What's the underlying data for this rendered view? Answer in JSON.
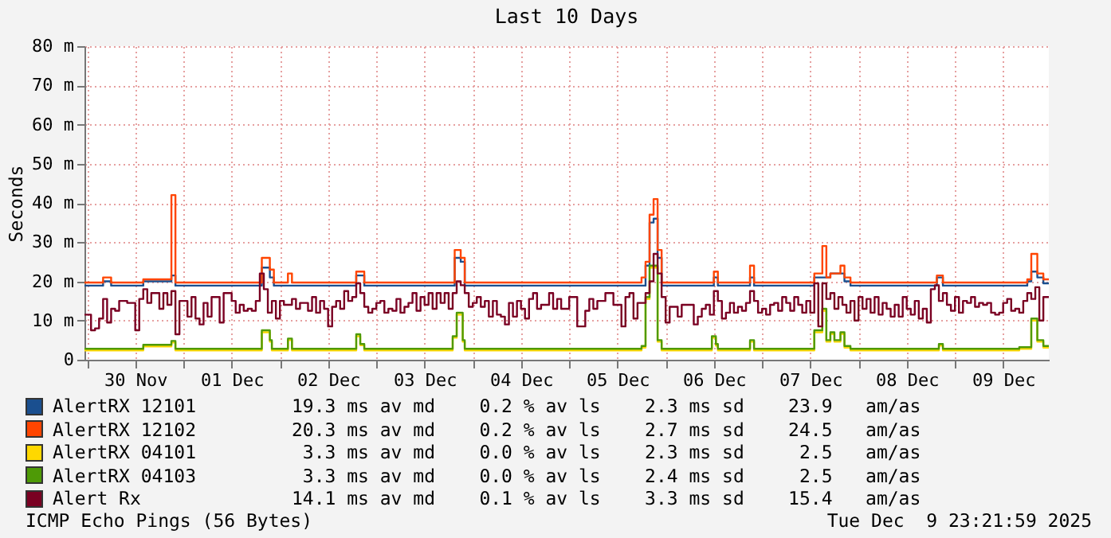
{
  "chart_data": {
    "type": "step",
    "title": "Last 10 Days",
    "ylabel": "Seconds",
    "xlim": [
      "2025-11-29T23:22",
      "2025-12-09T23:22"
    ],
    "xticks": [
      {
        "value": "2025-11-30T00:00",
        "label": null
      },
      {
        "value": "2025-11-30T12:00",
        "label": "30 Nov"
      },
      {
        "value": "2025-12-01T00:00",
        "label": null
      },
      {
        "value": "2025-12-01T12:00",
        "label": "01 Dec"
      },
      {
        "value": "2025-12-02T00:00",
        "label": null
      },
      {
        "value": "2025-12-02T12:00",
        "label": "02 Dec"
      },
      {
        "value": "2025-12-03T00:00",
        "label": null
      },
      {
        "value": "2025-12-03T12:00",
        "label": "03 Dec"
      },
      {
        "value": "2025-12-04T00:00",
        "label": null
      },
      {
        "value": "2025-12-04T12:00",
        "label": "04 Dec"
      },
      {
        "value": "2025-12-05T00:00",
        "label": null
      },
      {
        "value": "2025-12-05T12:00",
        "label": "05 Dec"
      },
      {
        "value": "2025-12-06T00:00",
        "label": null
      },
      {
        "value": "2025-12-06T12:00",
        "label": "06 Dec"
      },
      {
        "value": "2025-12-07T00:00",
        "label": null
      },
      {
        "value": "2025-12-07T12:00",
        "label": "07 Dec"
      },
      {
        "value": "2025-12-08T00:00",
        "label": null
      },
      {
        "value": "2025-12-08T12:00",
        "label": "08 Dec"
      },
      {
        "value": "2025-12-09T00:00",
        "label": null
      },
      {
        "value": "2025-12-09T12:00",
        "label": "09 Dec"
      }
    ],
    "ylim": [
      0,
      80
    ],
    "yticks": [
      0,
      {
        "value": 10,
        "label": "10 m"
      },
      {
        "value": 20,
        "label": "20 m"
      },
      {
        "value": 30,
        "label": "30 m"
      },
      {
        "value": 40,
        "label": "40 m"
      },
      {
        "value": 50,
        "label": "50 m"
      },
      {
        "value": 60,
        "label": "60 m"
      },
      {
        "value": 70,
        "label": "70 m"
      },
      {
        "value": 80,
        "label": "80 m"
      }
    ],
    "grid": true,
    "legend": "bottom left",
    "series": [
      {
        "name": "AlertRX 12101",
        "color": "#1a4f8f",
        "x": [
          "2025-11-29T23:22",
          "2025-11-30T04:00",
          "2025-11-30T06:00",
          "2025-11-30T14:00",
          "2025-11-30T21:00",
          "2025-11-30T22:00",
          "2025-12-01T19:30",
          "2025-12-01T21:30",
          "2025-12-01T22:30",
          "2025-12-02T19:00",
          "2025-12-02T21:00",
          "2025-12-03T19:30",
          "2025-12-03T21:00",
          "2025-12-03T22:00",
          "2025-12-05T19:00",
          "2025-12-05T20:00",
          "2025-12-05T21:00",
          "2025-12-05T22:00",
          "2025-12-05T23:00",
          "2025-12-06T12:00",
          "2025-12-06T13:00",
          "2025-12-06T21:00",
          "2025-12-06T22:00",
          "2025-12-07T13:00",
          "2025-12-07T17:00",
          "2025-12-07T19:30",
          "2025-12-07T20:30",
          "2025-12-07T22:00",
          "2025-12-08T19:30",
          "2025-12-08T21:00",
          "2025-12-09T18:00",
          "2025-12-09T19:00",
          "2025-12-09T20:30",
          "2025-12-09T22:00",
          "2025-12-09T23:22"
        ],
        "values": [
          18.9,
          20,
          18.9,
          20,
          21.5,
          18.9,
          23.5,
          21,
          18.9,
          21.5,
          18.9,
          26,
          25,
          18.9,
          24,
          35,
          36,
          26,
          18.9,
          21,
          18.9,
          21,
          18.9,
          21,
          22,
          22,
          20,
          18.9,
          21,
          18.9,
          20,
          22.5,
          21,
          19.5,
          19.5
        ]
      },
      {
        "name": "AlertRX 12102",
        "color": "#ff4500",
        "x": [
          "2025-11-29T23:22",
          "2025-11-30T04:00",
          "2025-11-30T06:00",
          "2025-11-30T14:00",
          "2025-11-30T21:00",
          "2025-11-30T22:00",
          "2025-12-01T19:30",
          "2025-12-01T21:30",
          "2025-12-01T22:30",
          "2025-12-02T02:00",
          "2025-12-02T03:00",
          "2025-12-02T19:00",
          "2025-12-02T21:00",
          "2025-12-03T19:30",
          "2025-12-03T21:00",
          "2025-12-03T22:00",
          "2025-12-05T18:00",
          "2025-12-05T19:00",
          "2025-12-05T20:00",
          "2025-12-05T21:00",
          "2025-12-05T22:00",
          "2025-12-05T23:00",
          "2025-12-06T12:00",
          "2025-12-06T13:00",
          "2025-12-06T21:00",
          "2025-12-06T22:00",
          "2025-12-07T13:00",
          "2025-12-07T15:00",
          "2025-12-07T16:00",
          "2025-12-07T17:00",
          "2025-12-07T19:30",
          "2025-12-07T20:30",
          "2025-12-07T22:00",
          "2025-12-08T19:30",
          "2025-12-08T21:00",
          "2025-12-09T18:00",
          "2025-12-09T19:00",
          "2025-12-09T20:30",
          "2025-12-09T22:00",
          "2025-12-09T23:22"
        ],
        "values": [
          19.7,
          21,
          19.7,
          20.5,
          42,
          19.7,
          26,
          23,
          19.7,
          22,
          19.7,
          22.5,
          19.7,
          28,
          26,
          19.7,
          21,
          25,
          37,
          41,
          28,
          19.7,
          22.5,
          19.7,
          24,
          19.7,
          22,
          29,
          21,
          22,
          24,
          21,
          19.7,
          21.5,
          19.7,
          20.5,
          27,
          22,
          20.5,
          20.5
        ]
      },
      {
        "name": "AlertRX 04101",
        "color": "#ffd800",
        "x": [
          "2025-11-29T23:22",
          "2025-11-30T14:00",
          "2025-11-30T21:00",
          "2025-11-30T22:00",
          "2025-12-01T19:30",
          "2025-12-01T21:30",
          "2025-12-01T22:00",
          "2025-12-02T02:00",
          "2025-12-02T03:00",
          "2025-12-02T19:00",
          "2025-12-02T20:00",
          "2025-12-02T21:00",
          "2025-12-03T19:00",
          "2025-12-03T20:00",
          "2025-12-03T21:30",
          "2025-12-03T22:00",
          "2025-12-05T18:00",
          "2025-12-05T19:00",
          "2025-12-05T20:00",
          "2025-12-05T22:00",
          "2025-12-05T23:00",
          "2025-12-06T11:30",
          "2025-12-06T12:30",
          "2025-12-06T13:00",
          "2025-12-06T21:00",
          "2025-12-06T22:00",
          "2025-12-07T13:00",
          "2025-12-07T15:00",
          "2025-12-07T16:00",
          "2025-12-07T17:00",
          "2025-12-07T18:00",
          "2025-12-07T19:30",
          "2025-12-07T20:30",
          "2025-12-07T22:00",
          "2025-12-08T20:00",
          "2025-12-08T21:00",
          "2025-12-09T16:00",
          "2025-12-09T19:00",
          "2025-12-09T20:30",
          "2025-12-09T22:00",
          "2025-12-09T23:22"
        ],
        "values": [
          2.4,
          3.4,
          4.4,
          2.4,
          7,
          4.6,
          2.4,
          5,
          2.4,
          6,
          3.7,
          2.4,
          5.6,
          11.5,
          4.6,
          2.4,
          3.1,
          15.5,
          23.5,
          4.6,
          2.4,
          5.6,
          3.6,
          2.4,
          4.6,
          2.4,
          7,
          12.5,
          4.6,
          6.6,
          4.6,
          6.6,
          3.1,
          2.4,
          3.6,
          2.4,
          2.8,
          10,
          4.6,
          3.1,
          3.1
        ]
      },
      {
        "name": "AlertRX 04103",
        "color": "#4e9a06",
        "x": [
          "2025-11-29T23:22",
          "2025-11-30T14:00",
          "2025-11-30T21:00",
          "2025-11-30T22:00",
          "2025-12-01T19:30",
          "2025-12-01T21:30",
          "2025-12-01T22:00",
          "2025-12-02T02:00",
          "2025-12-02T03:00",
          "2025-12-02T19:00",
          "2025-12-02T20:00",
          "2025-12-02T21:00",
          "2025-12-03T19:00",
          "2025-12-03T20:00",
          "2025-12-03T21:30",
          "2025-12-03T22:00",
          "2025-12-05T18:00",
          "2025-12-05T19:00",
          "2025-12-05T20:00",
          "2025-12-05T22:00",
          "2025-12-05T23:00",
          "2025-12-06T11:30",
          "2025-12-06T12:30",
          "2025-12-06T13:00",
          "2025-12-06T21:00",
          "2025-12-06T22:00",
          "2025-12-07T13:00",
          "2025-12-07T15:00",
          "2025-12-07T16:00",
          "2025-12-07T17:00",
          "2025-12-07T18:00",
          "2025-12-07T19:30",
          "2025-12-07T20:30",
          "2025-12-07T22:00",
          "2025-12-08T20:00",
          "2025-12-08T21:00",
          "2025-12-09T16:00",
          "2025-12-09T19:00",
          "2025-12-09T20:30",
          "2025-12-09T22:00",
          "2025-12-09T23:22"
        ],
        "values": [
          2.8,
          3.8,
          4.8,
          2.8,
          7.5,
          5,
          2.8,
          5.4,
          2.8,
          6.5,
          4,
          2.8,
          6,
          12,
          5,
          2.8,
          3.5,
          16,
          24,
          5,
          2.8,
          6,
          4,
          2.8,
          5,
          2.8,
          7.5,
          13,
          5,
          7,
          5,
          7,
          3.5,
          2.8,
          4,
          2.8,
          3.2,
          10.5,
          5,
          3.5,
          3.5
        ]
      },
      {
        "name": "Alert Rx",
        "color": "#7a0022",
        "x": [
          "2025-11-29T23:22",
          "2025-11-30T01:00",
          "2025-11-30T02:00",
          "2025-11-30T03:00",
          "2025-11-30T04:00",
          "2025-11-30T05:00",
          "2025-11-30T06:00",
          "2025-11-30T07:00",
          "2025-11-30T08:00",
          "2025-11-30T10:00",
          "2025-11-30T12:00",
          "2025-11-30T13:00",
          "2025-11-30T14:00",
          "2025-11-30T15:00",
          "2025-11-30T16:00",
          "2025-11-30T18:00",
          "2025-11-30T19:00",
          "2025-11-30T20:00",
          "2025-11-30T21:00",
          "2025-11-30T22:00",
          "2025-11-30T23:00",
          "2025-12-01T01:00",
          "2025-12-01T02:00",
          "2025-12-01T03:00",
          "2025-12-01T04:00",
          "2025-12-01T05:00",
          "2025-12-01T06:00",
          "2025-12-01T07:00",
          "2025-12-01T09:00",
          "2025-12-01T10:00",
          "2025-12-01T12:00",
          "2025-12-01T13:00",
          "2025-12-01T14:00",
          "2025-12-01T15:00",
          "2025-12-01T16:00",
          "2025-12-01T17:00",
          "2025-12-01T18:00",
          "2025-12-01T19:00",
          "2025-12-01T20:00",
          "2025-12-01T21:00",
          "2025-12-01T22:00",
          "2025-12-01T23:00",
          "2025-12-02T00:00",
          "2025-12-02T01:00",
          "2025-12-02T03:00",
          "2025-12-02T04:00",
          "2025-12-02T05:00",
          "2025-12-02T07:00",
          "2025-12-02T08:00",
          "2025-12-02T09:00",
          "2025-12-02T10:00",
          "2025-12-02T11:00",
          "2025-12-02T12:00",
          "2025-12-02T13:00",
          "2025-12-02T14:00",
          "2025-12-02T15:00",
          "2025-12-02T16:00",
          "2025-12-02T17:00",
          "2025-12-02T18:00",
          "2025-12-02T19:00",
          "2025-12-02T20:00",
          "2025-12-02T21:00",
          "2025-12-02T22:00",
          "2025-12-02T23:00",
          "2025-12-03T00:00",
          "2025-12-03T01:00",
          "2025-12-03T02:00",
          "2025-12-03T03:00",
          "2025-12-03T04:00",
          "2025-12-03T05:00",
          "2025-12-03T06:00",
          "2025-12-03T07:00",
          "2025-12-03T08:00",
          "2025-12-03T09:00",
          "2025-12-03T10:00",
          "2025-12-03T11:00",
          "2025-12-03T12:00",
          "2025-12-03T13:00",
          "2025-12-03T14:00",
          "2025-12-03T15:00",
          "2025-12-03T16:00",
          "2025-12-03T17:00",
          "2025-12-03T18:00",
          "2025-12-03T19:00",
          "2025-12-03T20:00",
          "2025-12-03T21:00",
          "2025-12-03T22:00",
          "2025-12-03T23:00",
          "2025-12-04T00:00",
          "2025-12-04T01:00",
          "2025-12-04T02:00",
          "2025-12-04T03:00",
          "2025-12-04T04:00",
          "2025-12-04T05:00",
          "2025-12-04T06:00",
          "2025-12-04T07:00",
          "2025-12-04T08:00",
          "2025-12-04T09:00",
          "2025-12-04T10:00",
          "2025-12-04T11:00",
          "2025-12-04T12:00",
          "2025-12-04T13:00",
          "2025-12-04T14:00",
          "2025-12-04T15:00",
          "2025-12-04T16:00",
          "2025-12-04T17:00",
          "2025-12-04T19:00",
          "2025-12-04T20:00",
          "2025-12-04T21:00",
          "2025-12-04T22:00",
          "2025-12-05T00:00",
          "2025-12-05T02:00",
          "2025-12-05T04:00",
          "2025-12-05T05:00",
          "2025-12-05T06:00",
          "2025-12-05T07:00",
          "2025-12-05T09:00",
          "2025-12-05T11:00",
          "2025-12-05T13:00",
          "2025-12-05T14:00",
          "2025-12-05T15:00",
          "2025-12-05T16:00",
          "2025-12-05T17:00",
          "2025-12-05T19:00",
          "2025-12-05T20:00",
          "2025-12-05T21:00",
          "2025-12-05T22:00",
          "2025-12-05T23:00",
          "2025-12-06T00:00",
          "2025-12-06T01:00",
          "2025-12-06T03:00",
          "2025-12-06T04:00",
          "2025-12-06T06:00",
          "2025-12-06T07:00",
          "2025-12-06T08:00",
          "2025-12-06T09:00",
          "2025-12-06T10:00",
          "2025-12-06T11:00",
          "2025-12-06T12:00",
          "2025-12-06T13:00",
          "2025-12-06T14:00",
          "2025-12-06T15:00",
          "2025-12-06T16:00",
          "2025-12-06T17:00",
          "2025-12-06T18:00",
          "2025-12-06T19:00",
          "2025-12-06T20:00",
          "2025-12-06T21:00",
          "2025-12-06T22:00",
          "2025-12-06T23:00",
          "2025-12-07T00:00",
          "2025-12-07T01:00",
          "2025-12-07T02:00",
          "2025-12-07T03:00",
          "2025-12-07T04:00",
          "2025-12-07T05:00",
          "2025-12-07T06:00",
          "2025-12-07T07:00",
          "2025-12-07T08:00",
          "2025-12-07T09:00",
          "2025-12-07T10:00",
          "2025-12-07T11:00",
          "2025-12-07T12:00",
          "2025-12-07T13:00",
          "2025-12-07T14:00",
          "2025-12-07T15:00",
          "2025-12-07T16:00",
          "2025-12-07T17:00",
          "2025-12-07T18:00",
          "2025-12-07T19:00",
          "2025-12-07T20:00",
          "2025-12-07T21:00",
          "2025-12-07T22:00",
          "2025-12-07T23:00",
          "2025-12-08T00:00",
          "2025-12-08T01:00",
          "2025-12-08T02:00",
          "2025-12-08T03:00",
          "2025-12-08T04:00",
          "2025-12-08T05:00",
          "2025-12-08T06:00",
          "2025-12-08T07:00",
          "2025-12-08T08:00",
          "2025-12-08T09:00",
          "2025-12-08T10:00",
          "2025-12-08T11:00",
          "2025-12-08T12:00",
          "2025-12-08T13:00",
          "2025-12-08T14:00",
          "2025-12-08T15:00",
          "2025-12-08T16:00",
          "2025-12-08T17:00",
          "2025-12-08T18:00",
          "2025-12-08T19:00",
          "2025-12-08T20:00",
          "2025-12-08T21:00",
          "2025-12-08T22:00",
          "2025-12-08T23:00",
          "2025-12-09T00:00",
          "2025-12-09T01:00",
          "2025-12-09T02:00",
          "2025-12-09T03:00",
          "2025-12-09T04:00",
          "2025-12-09T05:00",
          "2025-12-09T06:00",
          "2025-12-09T07:00",
          "2025-12-09T08:00",
          "2025-12-09T09:00",
          "2025-12-09T10:00",
          "2025-12-09T11:00",
          "2025-12-09T12:00",
          "2025-12-09T13:00",
          "2025-12-09T14:00",
          "2025-12-09T15:00",
          "2025-12-09T16:00",
          "2025-12-09T17:00",
          "2025-12-09T18:00",
          "2025-12-09T19:00",
          "2025-12-09T20:00",
          "2025-12-09T21:00",
          "2025-12-09T22:00",
          "2025-12-09T23:00",
          "2025-12-09T23:22"
        ],
        "values": [
          11.5,
          7.5,
          8,
          10.5,
          15.5,
          9.5,
          13,
          12.5,
          15,
          14.5,
          7.5,
          15.5,
          18,
          14.5,
          17,
          13,
          17,
          14,
          17.5,
          6.5,
          15,
          11,
          16,
          10.5,
          9,
          14.5,
          11,
          16,
          9.5,
          17,
          15,
          12,
          14,
          12.5,
          13,
          12.5,
          15,
          22,
          18,
          12,
          15,
          10.5,
          15,
          14,
          15.5,
          13,
          14.5,
          12.5,
          16,
          12,
          15,
          13,
          8.5,
          13.5,
          15,
          13,
          17.5,
          15,
          16,
          19.5,
          17,
          13.5,
          12,
          13,
          14.5,
          15,
          12,
          13,
          12.5,
          15.5,
          12,
          13.5,
          14.5,
          17,
          12.5,
          16,
          14,
          17,
          13,
          17,
          14.5,
          17,
          13,
          17,
          20,
          19,
          17,
          13.5,
          14.5,
          16,
          13.5,
          15,
          11,
          15,
          11.5,
          11,
          9,
          14.5,
          11,
          15,
          13,
          10.5,
          15.5,
          17,
          13,
          14,
          17,
          13,
          15.5,
          13,
          16,
          8.5,
          12.5,
          15.5,
          13,
          15,
          17,
          14,
          8.5,
          16,
          17,
          10.5,
          14.5,
          17,
          20,
          27,
          22,
          16,
          9.5,
          13.5,
          11,
          14,
          14,
          9,
          11,
          13,
          14,
          11.5,
          17.5,
          15,
          10.5,
          12,
          14.5,
          12,
          13.5,
          12.5,
          14.5,
          17.5,
          15,
          12,
          13,
          11.5,
          14,
          14.5,
          12.5,
          16,
          14.5,
          12.5,
          16,
          14,
          12,
          15,
          12,
          19.5,
          8.5,
          19.5,
          15.5,
          17,
          13,
          16,
          14,
          12,
          15,
          10,
          16,
          13,
          15.5,
          12,
          16,
          11.5,
          14.5,
          13,
          11,
          14,
          11,
          16,
          13,
          11.5,
          15,
          10.5,
          13,
          9.5,
          18,
          19,
          15,
          17,
          14,
          12.5,
          16,
          12,
          15,
          14.5,
          16,
          13.5,
          14.5,
          14,
          14.5,
          12,
          11.5,
          12,
          14.5,
          15.5,
          12.5,
          13,
          12,
          15,
          17,
          15.5,
          18.5,
          10,
          16,
          16,
          16
        ]
      }
    ],
    "annotations": [
      "19.3 ms av md    0.2 % av ls    2.3 ms sd    23.9   am/as",
      "20.3 ms av md    0.2 % av ls    2.7 ms sd    24.5   am/as",
      " 3.3 ms av md    0.0 % av ls    2.3 ms sd     2.5   am/as",
      " 3.3 ms av md    0.0 % av ls    2.4 ms sd     2.5   am/as",
      "14.1 ms av md    0.1 % av ls    3.3 ms sd    15.4   am/as",
      "ICMP Echo Pings (56 Bytes)",
      "Tue Dec  9 23:21:59 2025"
    ]
  }
}
